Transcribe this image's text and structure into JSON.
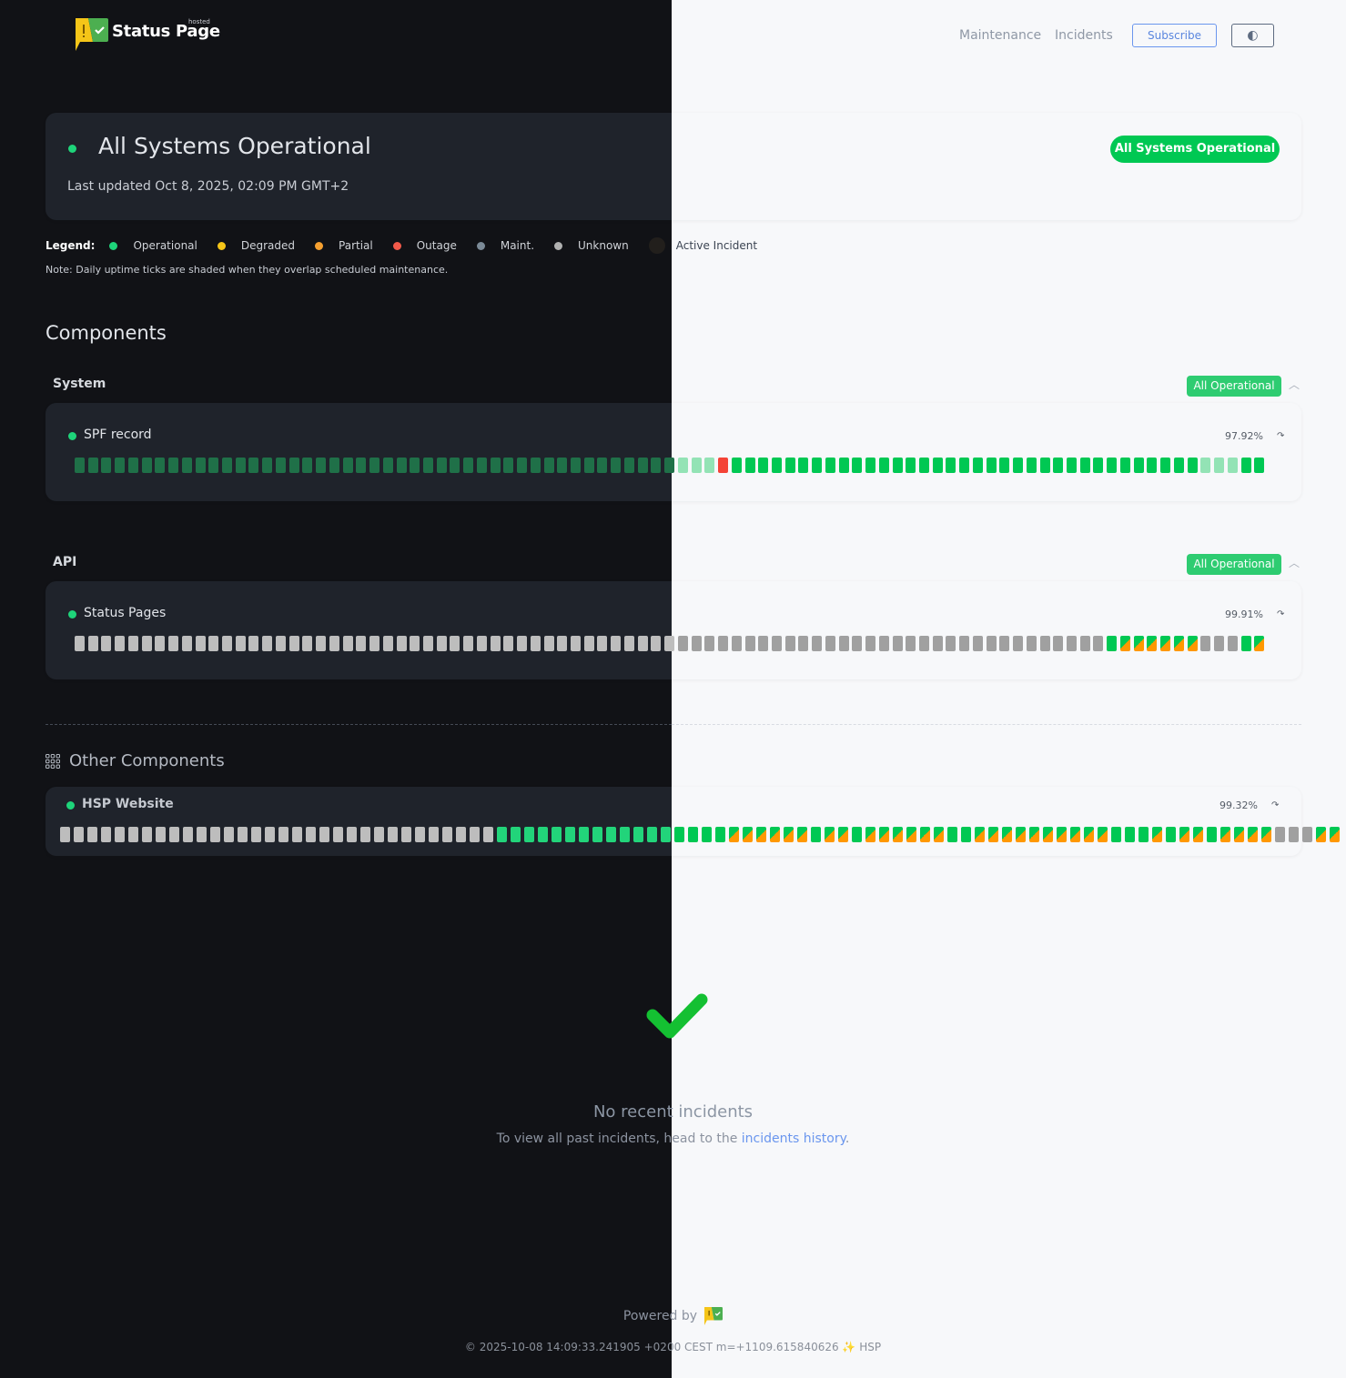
{
  "header": {
    "brand": "Status Page",
    "brand_tag": "hosted",
    "nav": [
      "Maintenance",
      "Incidents"
    ],
    "subscribe_label": "Subscribe",
    "theme_toggle_icon": "half-circle-icon"
  },
  "hero": {
    "title": "All Systems Operational",
    "last_updated": "Last updated Oct 8, 2025, 02:09 PM GMT+2",
    "badge": "All Systems Operational"
  },
  "legend": {
    "label": "Legend:",
    "items": [
      {
        "label": "Operational",
        "color": "#1ed47a"
      },
      {
        "label": "Degraded",
        "color": "#f5c518"
      },
      {
        "label": "Partial",
        "color": "#f5a030"
      },
      {
        "label": "Outage",
        "color": "#f25a4a"
      },
      {
        "label": "Maint.",
        "color": "#7b8a97"
      },
      {
        "label": "Unknown",
        "color": "#b0b0b0"
      },
      {
        "label": "Active Incident",
        "color": "#221f1c"
      }
    ],
    "note": "Note: Daily uptime ticks are shaded when they overlap scheduled maintenance."
  },
  "components_title": "Components",
  "tick_colors": {
    "dark": {
      "m": "#1f7048",
      "o": "#22d47a",
      "r": "#f44336",
      "u": "#bdbdbd",
      "s": [
        "#22d47a",
        "#ff9800"
      ]
    },
    "light": {
      "m": "#93e3b5",
      "o": "#00c853",
      "r": "#f44336",
      "u": "#a0a0a0",
      "s": [
        "#00c853",
        "#ff9800"
      ]
    }
  },
  "tick_codes": {
    "m": "operational (shaded maintenance)",
    "o": "operational",
    "r": "outage",
    "u": "unknown",
    "s": "operational / partial"
  },
  "groups": [
    {
      "name": "System",
      "badge": "All Operational",
      "components": [
        {
          "name": "SPF record",
          "uptime": "97.92%",
          "ticks": "mmmmmmmmmmmmmmmmmmmmmmmmmmmmmmmmmmmmmmmmmmmmmmmmrooooooooooooooooooooooooooooooooooommmoo"
        }
      ]
    },
    {
      "name": "API",
      "badge": "All Operational",
      "components": [
        {
          "name": "Status Pages",
          "uptime": "99.91%",
          "ticks": "uuuuuuuuuuuuuuuuuuuuuuuuuuuuuuuuuuuuuuuuuuuuuuuuuuuuuuuuuuuuuuuuuuuuuuuuuuuuuossssssuuuos"
        }
      ]
    }
  ],
  "other": {
    "title": "Other Components",
    "components": [
      {
        "name": "HSP Website",
        "uptime": "99.32%",
        "ticks": "uuuuuuuuuuuuuuuuuuuuuuuuuuuuuuuuooooooooooooooooossssssossossssssoossssssssssooosossossssuuuss"
      }
    ]
  },
  "incidents": {
    "title": "No recent incidents",
    "text": "To view all past incidents, head to the ",
    "link": "incidents history",
    "end": "."
  },
  "footer": {
    "powered": "Powered by",
    "copyright": "© 2025-10-08 14:09:33.241905 +0200 CEST m=+1109.615840626 ✨ HSP"
  }
}
